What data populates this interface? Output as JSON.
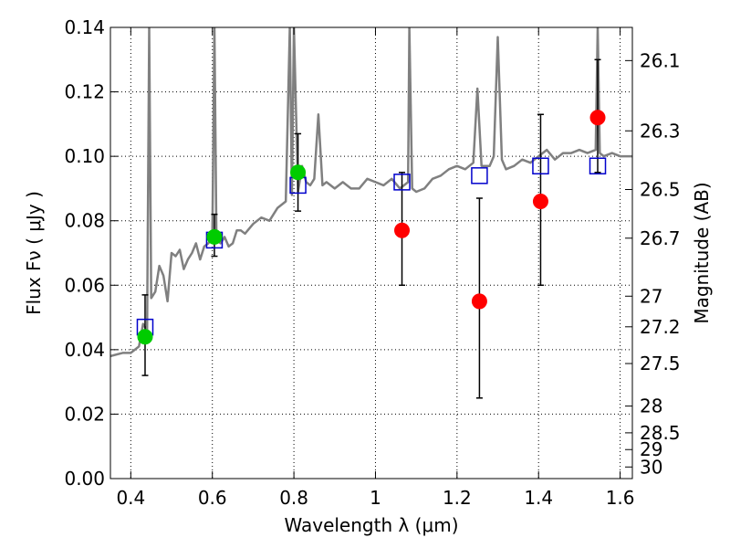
{
  "chart_data": {
    "type": "scatter",
    "xlabel": "Wavelength  λ (μm)",
    "ylabel": "Flux  Fν  ( μJy )",
    "y2label": "Magnitude (AB)",
    "xlim": [
      0.35,
      1.63
    ],
    "ylim": [
      0.0,
      0.14
    ],
    "grid": true,
    "x_ticks": [
      {
        "value": 0.4,
        "label": "0.4"
      },
      {
        "value": 0.6,
        "label": "0.6"
      },
      {
        "value": 0.8,
        "label": "0.8"
      },
      {
        "value": 1.0,
        "label": "1"
      },
      {
        "value": 1.2,
        "label": "1.2"
      },
      {
        "value": 1.4,
        "label": "1.4"
      },
      {
        "value": 1.6,
        "label": "1.6"
      }
    ],
    "y_ticks": [
      {
        "value": 0.0,
        "label": "0.00"
      },
      {
        "value": 0.02,
        "label": "0.02"
      },
      {
        "value": 0.04,
        "label": "0.04"
      },
      {
        "value": 0.06,
        "label": "0.06"
      },
      {
        "value": 0.08,
        "label": "0.08"
      },
      {
        "value": 0.1,
        "label": "0.10"
      },
      {
        "value": 0.12,
        "label": "0.12"
      },
      {
        "value": 0.14,
        "label": "0.14"
      }
    ],
    "y2_ticks": [
      {
        "label": "26.1",
        "flux": 0.1297
      },
      {
        "label": "26.3",
        "flux": 0.1079
      },
      {
        "label": "26.5",
        "flux": 0.0897
      },
      {
        "label": "26.7",
        "flux": 0.0746
      },
      {
        "label": "27",
        "flux": 0.0566
      },
      {
        "label": "27.2",
        "flux": 0.0471
      },
      {
        "label": "27.5",
        "flux": 0.0357
      },
      {
        "label": "28",
        "flux": 0.0225
      },
      {
        "label": "28.5",
        "flux": 0.0142
      },
      {
        "label": "29",
        "flux": 0.009
      },
      {
        "label": "30",
        "flux": 0.0036
      }
    ],
    "series": [
      {
        "kind": "model-spectrum",
        "color": "#808080",
        "x": [
          0.35,
          0.38,
          0.4,
          0.41,
          0.42,
          0.43,
          0.44,
          0.445,
          0.45,
          0.46,
          0.47,
          0.48,
          0.49,
          0.5,
          0.51,
          0.52,
          0.53,
          0.54,
          0.55,
          0.56,
          0.57,
          0.58,
          0.59,
          0.6,
          0.605,
          0.61,
          0.62,
          0.63,
          0.64,
          0.65,
          0.66,
          0.67,
          0.68,
          0.7,
          0.72,
          0.74,
          0.76,
          0.78,
          0.79,
          0.795,
          0.8,
          0.81,
          0.82,
          0.83,
          0.84,
          0.85,
          0.86,
          0.87,
          0.88,
          0.9,
          0.92,
          0.94,
          0.96,
          0.98,
          1.0,
          1.02,
          1.04,
          1.06,
          1.08,
          1.083,
          1.09,
          1.1,
          1.12,
          1.14,
          1.16,
          1.18,
          1.2,
          1.22,
          1.24,
          1.25,
          1.26,
          1.28,
          1.29,
          1.3,
          1.31,
          1.32,
          1.34,
          1.36,
          1.38,
          1.4,
          1.42,
          1.44,
          1.46,
          1.48,
          1.5,
          1.52,
          1.54,
          1.545,
          1.55,
          1.56,
          1.58,
          1.6,
          1.63
        ],
        "y": [
          0.038,
          0.039,
          0.039,
          0.04,
          0.041,
          0.048,
          0.046,
          0.14,
          0.056,
          0.058,
          0.066,
          0.063,
          0.055,
          0.07,
          0.069,
          0.071,
          0.065,
          0.068,
          0.07,
          0.073,
          0.068,
          0.072,
          0.073,
          0.075,
          0.14,
          0.074,
          0.073,
          0.075,
          0.072,
          0.073,
          0.077,
          0.077,
          0.076,
          0.079,
          0.081,
          0.08,
          0.084,
          0.086,
          0.14,
          0.088,
          0.14,
          0.089,
          0.097,
          0.092,
          0.091,
          0.093,
          0.113,
          0.091,
          0.092,
          0.09,
          0.092,
          0.09,
          0.09,
          0.093,
          0.092,
          0.091,
          0.093,
          0.09,
          0.092,
          0.14,
          0.09,
          0.089,
          0.09,
          0.093,
          0.094,
          0.096,
          0.097,
          0.096,
          0.098,
          0.121,
          0.097,
          0.097,
          0.1,
          0.137,
          0.099,
          0.096,
          0.097,
          0.099,
          0.098,
          0.1,
          0.102,
          0.099,
          0.101,
          0.101,
          0.102,
          0.101,
          0.102,
          0.14,
          0.101,
          0.1,
          0.101,
          0.1,
          0.1
        ]
      },
      {
        "kind": "model-photometry",
        "marker": "open-square",
        "color": "#0000cc",
        "x": [
          0.435,
          0.605,
          0.81,
          1.065,
          1.255,
          1.405,
          1.545
        ],
        "y": [
          0.047,
          0.074,
          0.091,
          0.092,
          0.094,
          0.097,
          0.097
        ]
      },
      {
        "kind": "observed-detected",
        "marker": "filled-circle",
        "color": "#00cc00",
        "x": [
          0.435,
          0.605,
          0.81
        ],
        "y": [
          0.044,
          0.075,
          0.095
        ],
        "yerr_low": [
          0.032,
          0.069,
          0.083
        ],
        "yerr_high": [
          0.057,
          0.082,
          0.107
        ]
      },
      {
        "kind": "observed-weak",
        "marker": "filled-circle",
        "color": "#ff0000",
        "x": [
          1.065,
          1.255,
          1.405,
          1.545
        ],
        "y": [
          0.077,
          0.055,
          0.086,
          0.112
        ],
        "yerr_low": [
          0.06,
          0.025,
          0.06,
          0.095
        ],
        "yerr_high": [
          0.095,
          0.087,
          0.113,
          0.13
        ]
      }
    ]
  }
}
